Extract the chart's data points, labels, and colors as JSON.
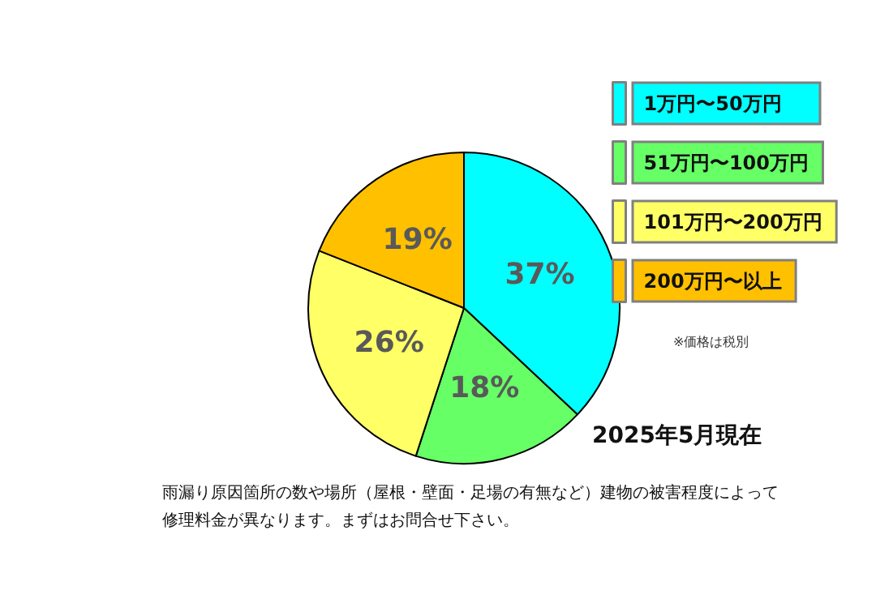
{
  "chart_data": {
    "type": "pie",
    "categories": [
      "1万円〜50万円",
      "51万円〜100万円",
      "101万円〜200万円",
      "200万円〜以上"
    ],
    "values": [
      37,
      18,
      26,
      19
    ],
    "colors": [
      "#00ffff",
      "#66ff66",
      "#ffff66",
      "#ffc000"
    ],
    "value_labels": [
      "37%",
      "18%",
      "26%",
      "19%"
    ],
    "legend": "top right",
    "annotations": [
      "※価格は税別",
      "2025年5月現在",
      "雨漏り原因箇所の数や場所（屋根・壁面・足場の有無など）建物の被害程度によって修理料金が異なります。まずはお問合せ下さい。"
    ]
  }
}
